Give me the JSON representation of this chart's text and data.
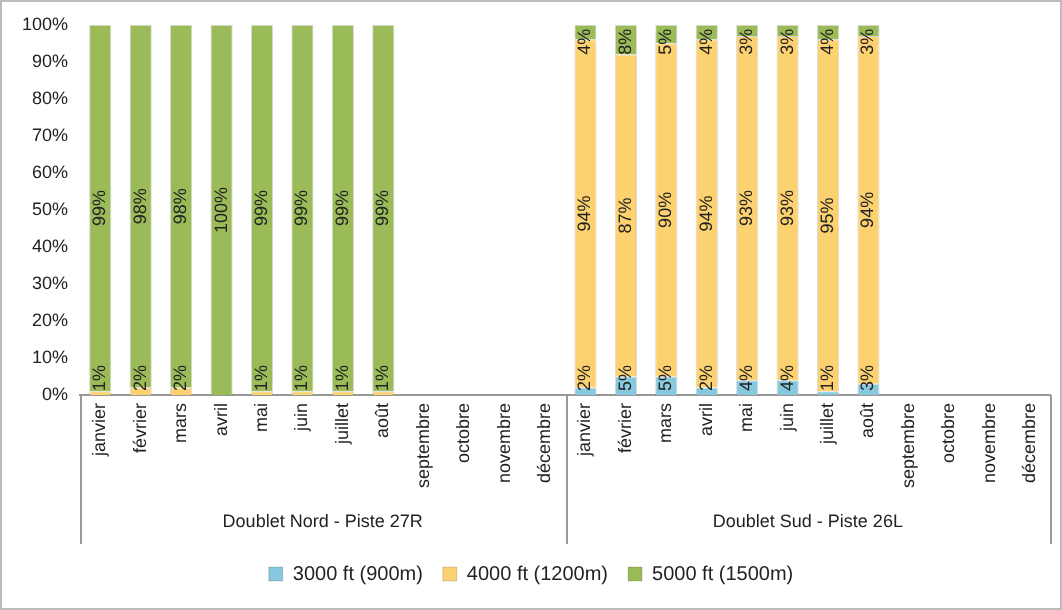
{
  "chart_data": {
    "type": "bar",
    "stacked": true,
    "categories": [
      "janvier",
      "février",
      "mars",
      "avril",
      "mai",
      "juin",
      "juillet",
      "août",
      "septembre",
      "octobre",
      "novembre",
      "décembre",
      "janvier",
      "février",
      "mars",
      "avril",
      "mai",
      "juin",
      "juillet",
      "août",
      "septembre",
      "octobre",
      "novembre",
      "décembre"
    ],
    "annotations": [
      "Doublet Nord - Piste 27R",
      "Doublet Sud - Piste 26L"
    ],
    "series": [
      {
        "name": "3000 ft (900m)",
        "color": "#86c8dd",
        "values": [
          0,
          0,
          0,
          0,
          0,
          0,
          0,
          0,
          null,
          null,
          null,
          null,
          2,
          5,
          5,
          2,
          4,
          4,
          1,
          3,
          null,
          null,
          null,
          null
        ],
        "value_labels": [
          null,
          null,
          null,
          null,
          null,
          null,
          null,
          null,
          null,
          null,
          null,
          null,
          "2%",
          "5%",
          "5%",
          "2%",
          "4%",
          "4%",
          "1%",
          "3%",
          null,
          null,
          null,
          null
        ]
      },
      {
        "name": "4000 ft (1200m)",
        "color": "#fcd16f",
        "values": [
          1,
          2,
          2,
          0,
          1,
          1,
          1,
          1,
          null,
          null,
          null,
          null,
          94,
          87,
          90,
          94,
          93,
          93,
          95,
          94,
          null,
          null,
          null,
          null
        ],
        "value_labels": [
          "1%",
          "2%",
          "2%",
          null,
          "1%",
          "1%",
          "1%",
          "1%",
          null,
          null,
          null,
          null,
          "94%",
          "87%",
          "90%",
          "94%",
          "93%",
          "93%",
          "95%",
          "94%",
          null,
          null,
          null,
          null
        ]
      },
      {
        "name": "5000 ft (1500m)",
        "color": "#9bbb59",
        "values": [
          99,
          98,
          98,
          100,
          99,
          99,
          99,
          99,
          null,
          null,
          null,
          null,
          4,
          8,
          5,
          4,
          3,
          3,
          4,
          3,
          null,
          null,
          null,
          null
        ],
        "value_labels": [
          "99%",
          "98%",
          "98%",
          "100%",
          "99%",
          "99%",
          "99%",
          "99%",
          null,
          null,
          null,
          null,
          "4%",
          "8%",
          "5%",
          "4%",
          "3%",
          "3%",
          "4%",
          "3%",
          null,
          null,
          null,
          null
        ]
      }
    ],
    "ylim": [
      0,
      100
    ],
    "yticks": [
      {
        "value": 0,
        "label": "0%"
      },
      {
        "value": 10,
        "label": "10%"
      },
      {
        "value": 20,
        "label": "20%"
      },
      {
        "value": 30,
        "label": "30%"
      },
      {
        "value": 40,
        "label": "40%"
      },
      {
        "value": 50,
        "label": "50%"
      },
      {
        "value": 60,
        "label": "60%"
      },
      {
        "value": 70,
        "label": "70%"
      },
      {
        "value": 80,
        "label": "80%"
      },
      {
        "value": 90,
        "label": "90%"
      },
      {
        "value": 100,
        "label": "100%"
      }
    ],
    "grid": false,
    "legend": "bottom"
  }
}
